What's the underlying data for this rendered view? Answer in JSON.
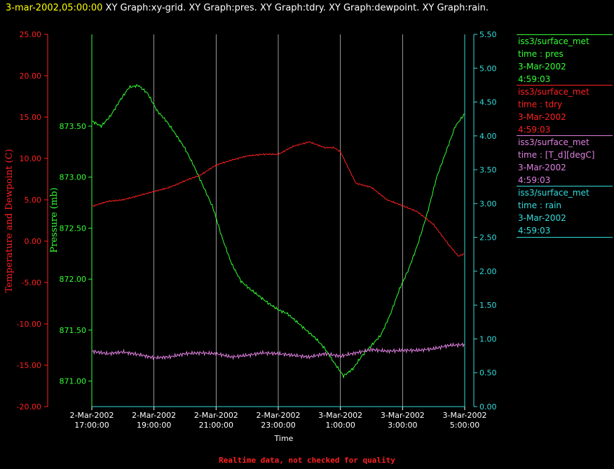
{
  "header": {
    "date_label": "3-mar-2002,05:00:00",
    "graph_labels": "XY Graph:xy-grid.  XY Graph:pres.  XY Graph:tdry.  XY Graph:dewpoint.  XY Graph:rain."
  },
  "colors": {
    "pres": "#33ff33",
    "tdry": "#ff2020",
    "dewpoint": "#e080e0",
    "rain": "#33dddd",
    "grid": "#ffffff"
  },
  "chart_data": {
    "type": "line",
    "xlabel": "Time",
    "x_ticks": [
      [
        "2-Mar-2002",
        "17:00:00"
      ],
      [
        "2-Mar-2002",
        "19:00:00"
      ],
      [
        "2-Mar-2002",
        "21:00:00"
      ],
      [
        "2-Mar-2002",
        "23:00:00"
      ],
      [
        "3-Mar-2002",
        "1:00:00"
      ],
      [
        "3-Mar-2002",
        "3:00:00"
      ],
      [
        "3-Mar-2002",
        "5:00:00"
      ]
    ],
    "x_range_hours": [
      0,
      12
    ],
    "left_axis_1": {
      "label": "Temperature and Dewpoint (C)",
      "ylim": [
        -20,
        25
      ],
      "ticks": [
        "25.00",
        "20.00",
        "15.00",
        "10.00",
        "5.00",
        "0.00",
        "-5.00",
        "-10.00",
        "-15.00",
        "-20.00"
      ]
    },
    "left_axis_2": {
      "label": "Pressure (mb)",
      "ylim": [
        870.75,
        874.4
      ],
      "ticks": [
        "873.50",
        "873.00",
        "872.50",
        "872.00",
        "871.50",
        "871.00"
      ]
    },
    "right_axis": {
      "ylim": [
        0,
        5.5
      ],
      "ticks": [
        "5.50",
        "5.00",
        "4.50",
        "4.00",
        "3.50",
        "3.00",
        "2.50",
        "2.00",
        "1.50",
        "1.00",
        "0.50",
        "0.00"
      ]
    },
    "series": [
      {
        "name": "pres",
        "axis": "pressure",
        "x": [
          0,
          0.3,
          0.6,
          0.9,
          1.2,
          1.5,
          1.8,
          2.1,
          2.4,
          2.7,
          3.0,
          3.3,
          3.6,
          3.9,
          4.2,
          4.5,
          4.8,
          5.1,
          5.4,
          5.7,
          6.0,
          6.3,
          6.6,
          6.9,
          7.2,
          7.5,
          7.8,
          8.1,
          8.4,
          8.7,
          9.0,
          9.3,
          9.6,
          9.9,
          10.2,
          10.5,
          10.8,
          11.1,
          11.4,
          11.7,
          12.0
        ],
        "y": [
          873.55,
          873.5,
          873.6,
          873.75,
          873.88,
          873.9,
          873.82,
          873.65,
          873.55,
          873.42,
          873.28,
          873.1,
          872.9,
          872.7,
          872.4,
          872.15,
          871.98,
          871.9,
          871.83,
          871.76,
          871.7,
          871.66,
          871.58,
          871.5,
          871.42,
          871.32,
          871.18,
          871.05,
          871.12,
          871.25,
          871.35,
          871.45,
          871.65,
          871.9,
          872.1,
          872.35,
          872.65,
          873.0,
          873.25,
          873.5,
          873.62
        ]
      },
      {
        "name": "tdry",
        "axis": "temperature",
        "x": [
          0,
          0.5,
          1.0,
          1.5,
          2.0,
          2.5,
          3.0,
          3.5,
          4.0,
          4.5,
          5.0,
          5.5,
          6.0,
          6.5,
          7.0,
          7.5,
          7.8,
          8.0,
          8.5,
          9.0,
          9.5,
          10.0,
          10.5,
          11.0,
          11.5,
          11.8,
          12.0
        ],
        "y": [
          4.2,
          4.8,
          5.0,
          5.5,
          6.0,
          6.5,
          7.3,
          8.0,
          9.2,
          9.8,
          10.3,
          10.5,
          10.5,
          11.5,
          12.0,
          11.3,
          11.3,
          10.8,
          7.0,
          6.5,
          5.0,
          4.3,
          3.5,
          2.0,
          -0.5,
          -1.8,
          -1.5
        ]
      },
      {
        "name": "dewpoint",
        "axis": "temperature",
        "x": [
          0,
          0.5,
          1.0,
          1.5,
          2.0,
          2.5,
          3.0,
          3.5,
          4.0,
          4.5,
          5.0,
          5.5,
          6.0,
          6.5,
          7.0,
          7.5,
          8.0,
          8.5,
          9.0,
          9.5,
          10.0,
          10.5,
          11.0,
          11.5,
          12.0
        ],
        "y": [
          -13.3,
          -13.6,
          -13.4,
          -13.7,
          -14.1,
          -14.0,
          -13.6,
          -13.5,
          -13.6,
          -14.0,
          -13.8,
          -13.5,
          -13.6,
          -13.8,
          -14.0,
          -13.6,
          -13.9,
          -13.5,
          -13.1,
          -13.3,
          -13.2,
          -13.2,
          -13.0,
          -12.6,
          -12.5
        ]
      },
      {
        "name": "rain",
        "axis": "rain",
        "x": [
          0,
          12
        ],
        "y": [
          0,
          0
        ]
      }
    ]
  },
  "legend": [
    {
      "source": "iss3/surface_met",
      "var": "time : pres",
      "date": "3-Mar-2002",
      "time": "4:59:03"
    },
    {
      "source": "iss3/surface_met",
      "var": "time : tdry",
      "date": "3-Mar-2002",
      "time": "4:59:03"
    },
    {
      "source": "iss3/surface_met",
      "var": "time : [T_d][degC]",
      "date": "3-Mar-2002",
      "time": "4:59:03"
    },
    {
      "source": "iss3/surface_met",
      "var": "time : rain",
      "date": "3-Mar-2002",
      "time": "4:59:03"
    }
  ],
  "footer": "Realtime data, not checked for quality"
}
